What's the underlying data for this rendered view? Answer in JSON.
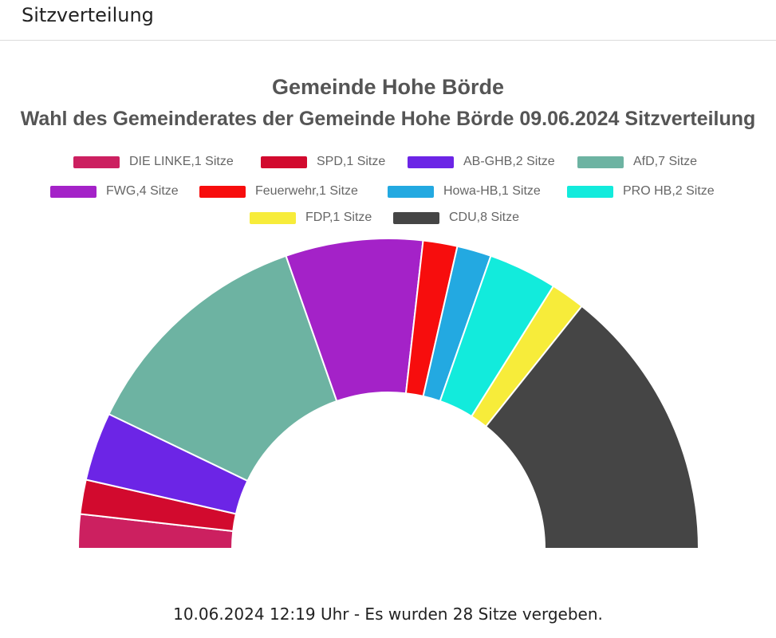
{
  "header": {
    "title": "Sitzverteilung"
  },
  "chart_data": {
    "type": "pie",
    "subtype": "half-donut",
    "title": "Gemeinde Hohe Börde",
    "subtitle": "Wahl des Gemeinderates der Gemeinde Hohe Börde 09.06.2024 Sitzverteilung",
    "legend_position": "top",
    "total": 28,
    "series": [
      {
        "name": "DIE LINKE",
        "label": "DIE LINKE,1 Sitze",
        "value": 1,
        "color": "#cc2060"
      },
      {
        "name": "SPD",
        "label": "SPD,1 Sitze",
        "value": 1,
        "color": "#d20a2e"
      },
      {
        "name": "AB-GHB",
        "label": "AB-GHB,2 Sitze",
        "value": 2,
        "color": "#6c25e6"
      },
      {
        "name": "AfD",
        "label": "AfD,7 Sitze",
        "value": 7,
        "color": "#6db3a2"
      },
      {
        "name": "FWG",
        "label": "FWG,4 Sitze",
        "value": 4,
        "color": "#a422c8"
      },
      {
        "name": "Feuerwehr",
        "label": "Feuerwehr,1 Sitze",
        "value": 1,
        "color": "#f70d0d"
      },
      {
        "name": "Howa-HB",
        "label": "Howa-HB,1 Sitze",
        "value": 1,
        "color": "#23a9e1"
      },
      {
        "name": "PRO HB",
        "label": "PRO HB,2 Sitze",
        "value": 2,
        "color": "#12ebdc"
      },
      {
        "name": "FDP",
        "label": "FDP,1 Sitze",
        "value": 1,
        "color": "#f7ec3a"
      },
      {
        "name": "CDU",
        "label": "CDU,8 Sitze",
        "value": 8,
        "color": "#454545"
      }
    ]
  },
  "footer": {
    "text": "10.06.2024 12:19 Uhr - Es wurden 28 Sitze vergeben."
  }
}
